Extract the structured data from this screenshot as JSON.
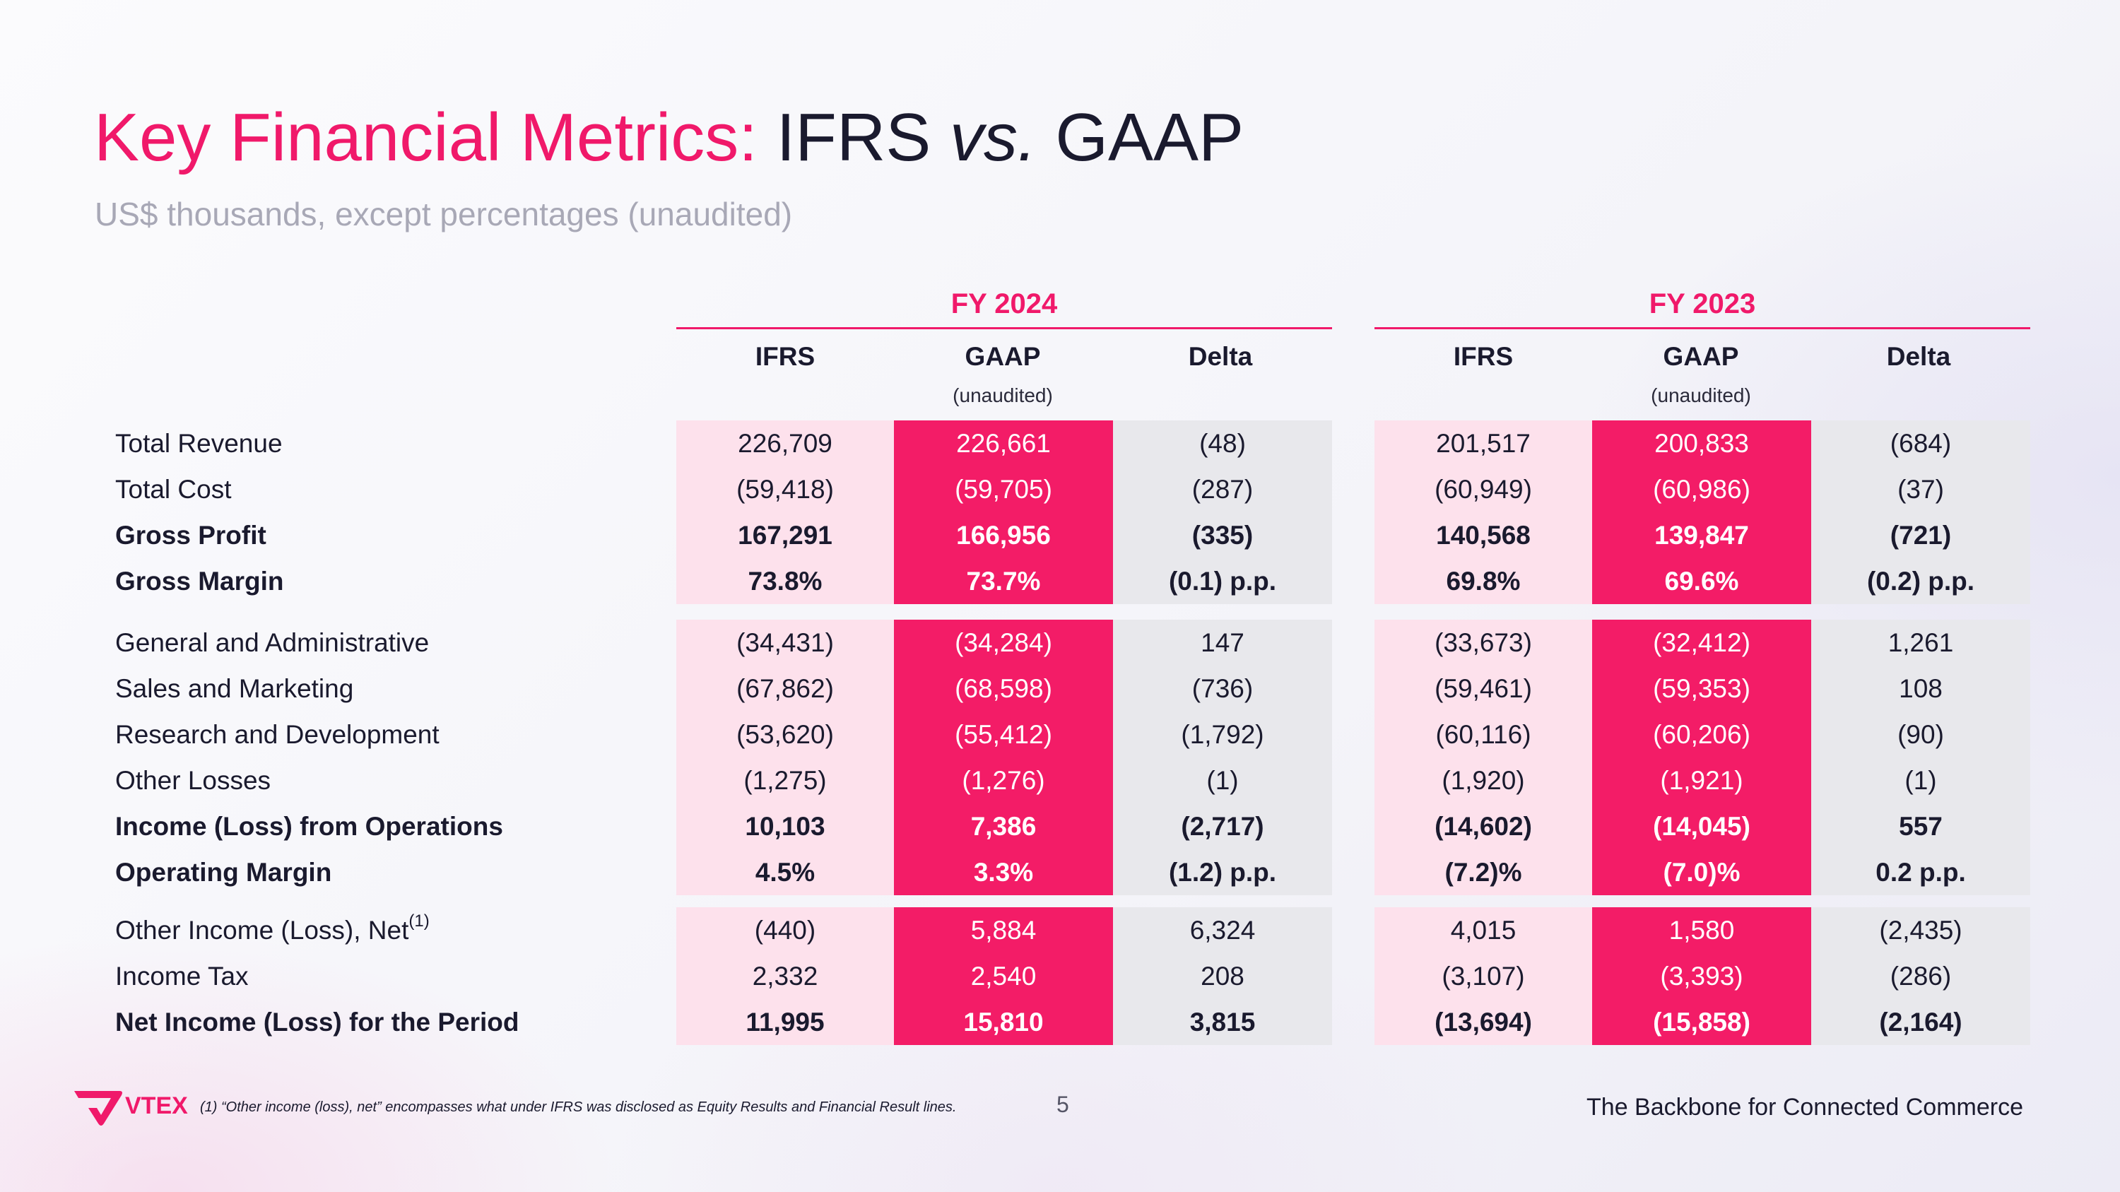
{
  "title": {
    "part1": "Key Financial Metrics:",
    "part2": "IFRS",
    "part3": "vs.",
    "part4": "GAAP"
  },
  "subtitle": "US$ thousands, except percentages (unaudited)",
  "panels": {
    "fy2024": {
      "year": "FY 2024",
      "headers": [
        "IFRS",
        "GAAP",
        "Delta"
      ],
      "gaap_note": "(unaudited)"
    },
    "fy2023": {
      "year": "FY 2023",
      "headers": [
        "IFRS",
        "GAAP",
        "Delta"
      ],
      "gaap_note": "(unaudited)"
    }
  },
  "rows": [
    {
      "label": "Total Revenue",
      "fy2024": [
        "226,709",
        "226,661",
        "(48)"
      ],
      "fy2023": [
        "201,517",
        "200,833",
        "(684)"
      ]
    },
    {
      "label": "Total Cost",
      "fy2024": [
        "(59,418)",
        "(59,705)",
        "(287)"
      ],
      "fy2023": [
        "(60,949)",
        "(60,986)",
        "(37)"
      ]
    },
    {
      "label": "Gross Profit",
      "fy2024": [
        "167,291",
        "166,956",
        "(335)"
      ],
      "fy2023": [
        "140,568",
        "139,847",
        "(721)"
      ]
    },
    {
      "label": "Gross Margin",
      "fy2024": [
        "73.8%",
        "73.7%",
        "(0.1) p.p."
      ],
      "fy2023": [
        "69.8%",
        "69.6%",
        "(0.2) p.p."
      ]
    },
    {
      "label": "General and Administrative",
      "fy2024": [
        "(34,431)",
        "(34,284)",
        "147"
      ],
      "fy2023": [
        "(33,673)",
        "(32,412)",
        "1,261"
      ]
    },
    {
      "label": "Sales and Marketing",
      "fy2024": [
        "(67,862)",
        "(68,598)",
        "(736)"
      ],
      "fy2023": [
        "(59,461)",
        "(59,353)",
        "108"
      ]
    },
    {
      "label": "Research and Development",
      "fy2024": [
        "(53,620)",
        "(55,412)",
        "(1,792)"
      ],
      "fy2023": [
        "(60,116)",
        "(60,206)",
        "(90)"
      ]
    },
    {
      "label": "Other Losses",
      "fy2024": [
        "(1,275)",
        "(1,276)",
        "(1)"
      ],
      "fy2023": [
        "(1,920)",
        "(1,921)",
        "(1)"
      ]
    },
    {
      "label": "Income (Loss) from Operations",
      "fy2024": [
        "10,103",
        "7,386",
        "(2,717)"
      ],
      "fy2023": [
        "(14,602)",
        "(14,045)",
        "557"
      ]
    },
    {
      "label": "Operating Margin",
      "fy2024": [
        "4.5%",
        "3.3%",
        "(1.2) p.p."
      ],
      "fy2023": [
        "(7.2)%",
        "(7.0)%",
        "0.2 p.p."
      ]
    },
    {
      "label": "Other Income (Loss), Net",
      "label_sup": "(1)",
      "fy2024": [
        "(440)",
        "5,884",
        "6,324"
      ],
      "fy2023": [
        "4,015",
        "1,580",
        "(2,435)"
      ]
    },
    {
      "label": "Income Tax",
      "fy2024": [
        "2,332",
        "2,540",
        "208"
      ],
      "fy2023": [
        "(3,107)",
        "(3,393)",
        "(286)"
      ]
    },
    {
      "label": "Net Income (Loss) for the Period",
      "fy2024": [
        "11,995",
        "15,810",
        "3,815"
      ],
      "fy2023": [
        "(13,694)",
        "(15,858)",
        "(2,164)"
      ]
    }
  ],
  "footer": {
    "logo_text": "VTEX",
    "footnote": "(1) “Other income (loss), net” encompasses what under IFRS was disclosed as Equity Results and Financial Result lines.",
    "page_number": "5",
    "tagline": "The Backbone for Connected Commerce"
  },
  "colors": {
    "brand_pink": "#f0196a",
    "gaap_fill": "#f31c67",
    "ifrs_fill": "#fde1ec",
    "delta_fill": "#e8e8ec"
  }
}
